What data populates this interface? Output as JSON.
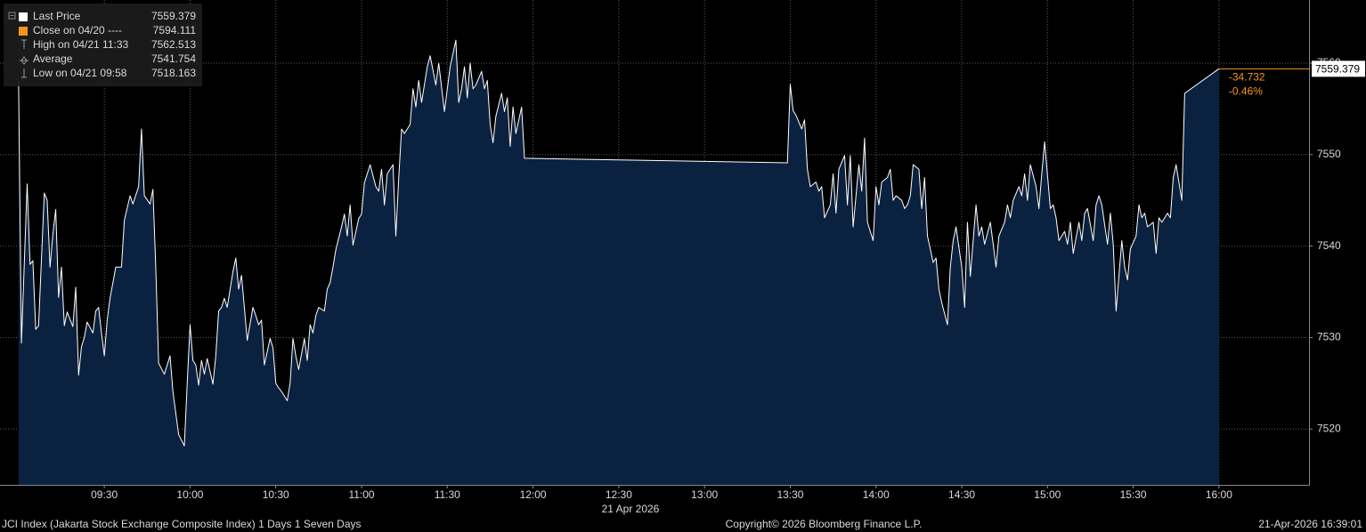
{
  "chart_data": {
    "type": "area",
    "date_label": "21 Apr 2026",
    "footer_left": "JCI Index (Jakarta Stock Exchange Composite Index) 1 Days 1 Seven Days",
    "footer_center": "Copyright© 2026 Bloomberg Finance L.P.",
    "footer_right": "21-Apr-2026 16:39:01",
    "xlim": [
      533.5,
      991.5
    ],
    "ylim": [
      7513.9,
      7566.9
    ],
    "xticks": [
      {
        "value": 570,
        "label": "09:30"
      },
      {
        "value": 600,
        "label": "10:00"
      },
      {
        "value": 630,
        "label": "10:30"
      },
      {
        "value": 660,
        "label": "11:00"
      },
      {
        "value": 690,
        "label": "11:30"
      },
      {
        "value": 720,
        "label": "12:00"
      },
      {
        "value": 750,
        "label": "12:30"
      },
      {
        "value": 780,
        "label": "13:00"
      },
      {
        "value": 810,
        "label": "13:30"
      },
      {
        "value": 840,
        "label": "14:00"
      },
      {
        "value": 870,
        "label": "14:30"
      },
      {
        "value": 900,
        "label": "15:00"
      },
      {
        "value": 930,
        "label": "15:30"
      },
      {
        "value": 960,
        "label": "16:00"
      }
    ],
    "yticks": [
      7520,
      7530,
      7540,
      7550,
      7560
    ],
    "grid": true,
    "x": [
      540,
      541,
      543,
      544,
      545,
      546,
      547,
      549,
      550,
      551,
      552,
      553,
      554,
      555,
      556,
      557,
      559,
      560,
      561,
      562,
      563,
      564,
      566,
      567,
      568,
      569,
      570,
      571,
      572,
      574,
      576,
      577,
      579,
      580,
      582,
      583,
      584,
      586,
      587,
      588,
      589,
      591,
      593,
      594,
      596,
      598,
      599,
      600,
      601,
      602,
      603,
      604,
      605,
      606,
      608,
      609,
      610,
      611,
      612,
      613,
      615,
      616,
      617,
      618,
      619,
      620,
      622,
      623,
      624,
      625,
      626,
      628,
      629,
      630,
      631,
      632,
      634,
      635,
      636,
      637,
      638,
      640,
      641,
      642,
      643,
      644,
      645,
      647,
      648,
      649,
      650,
      651,
      653,
      654,
      655,
      656,
      657,
      659,
      660,
      661,
      662,
      663,
      665,
      666,
      667,
      668,
      669,
      671,
      672,
      673,
      674,
      675,
      677,
      678,
      679,
      680,
      681,
      683,
      684,
      686,
      687,
      689,
      691,
      693,
      694,
      695,
      696,
      697,
      698,
      699,
      700,
      702,
      703,
      704,
      705,
      706,
      707,
      709,
      710,
      711,
      712,
      713,
      714,
      716,
      717,
      809,
      810,
      811,
      812,
      814,
      815,
      816,
      817,
      819,
      820,
      821,
      822,
      824,
      825,
      826,
      827,
      829,
      830,
      831,
      832,
      834,
      835,
      836,
      837,
      839,
      840,
      841,
      842,
      844,
      845,
      846,
      847,
      849,
      850,
      851,
      852,
      853,
      855,
      856,
      857,
      858,
      860,
      861,
      862,
      863,
      865,
      866,
      867,
      868,
      870,
      871,
      872,
      873,
      875,
      876,
      877,
      878,
      880,
      881,
      882,
      883,
      885,
      886,
      887,
      888,
      890,
      891,
      892,
      893,
      894,
      896,
      897,
      898,
      899,
      901,
      902,
      903,
      904,
      906,
      907,
      908,
      909,
      911,
      912,
      913,
      914,
      916,
      917,
      918,
      919,
      921,
      922,
      923,
      924,
      926,
      927,
      928,
      929,
      931,
      932,
      933,
      934,
      935,
      937,
      938,
      939,
      940,
      942,
      943,
      944,
      945,
      947,
      948,
      960
    ],
    "series": [
      {
        "name": "Last Price",
        "color": "#ffffff",
        "fill_color": "#0b2140",
        "values": [
          7558.0,
          7529.4,
          7546.8,
          7538.0,
          7538.4,
          7530.9,
          7531.3,
          7545.8,
          7545.0,
          7537.7,
          7541.3,
          7544.0,
          7534.4,
          7537.7,
          7531.3,
          7532.8,
          7531.2,
          7535.5,
          7525.9,
          7529.0,
          7530.0,
          7531.7,
          7530.5,
          7532.9,
          7533.3,
          7530.5,
          7528.0,
          7531.9,
          7534.3,
          7537.7,
          7537.7,
          7542.8,
          7545.5,
          7544.6,
          7546.5,
          7552.8,
          7545.5,
          7544.6,
          7546.2,
          7537.7,
          7527.2,
          7526.0,
          7528.0,
          7524.1,
          7519.4,
          7518.163,
          7525.0,
          7531.4,
          7527.5,
          7527.0,
          7524.8,
          7527.5,
          7526.0,
          7527.7,
          7524.9,
          7528.0,
          7532.9,
          7533.3,
          7534.3,
          7533.3,
          7537.2,
          7538.7,
          7535.3,
          7536.8,
          7533.3,
          7529.7,
          7533.3,
          7532.4,
          7531.4,
          7531.9,
          7527.0,
          7529.9,
          7528.9,
          7525.0,
          7524.5,
          7524.1,
          7523.1,
          7525.0,
          7529.9,
          7528.0,
          7526.5,
          7529.9,
          7527.5,
          7531.4,
          7530.5,
          7532.4,
          7533.3,
          7532.9,
          7535.3,
          7536.0,
          7537.7,
          7539.6,
          7542.1,
          7543.5,
          7541.1,
          7544.5,
          7540.1,
          7543.0,
          7543.5,
          7546.9,
          7547.9,
          7548.9,
          7546.5,
          7546.0,
          7548.4,
          7544.5,
          7547.9,
          7548.9,
          7541.1,
          7547.4,
          7552.8,
          7552.3,
          7553.3,
          7557.2,
          7555.2,
          7558.1,
          7555.7,
          7559.6,
          7560.8,
          7557.6,
          7560.0,
          7554.7,
          7559.6,
          7562.513,
          7555.7,
          7557.2,
          7559.6,
          7556.2,
          7560.0,
          7557.2,
          7557.6,
          7559.1,
          7557.2,
          7558.1,
          7553.3,
          7551.3,
          7554.2,
          7556.7,
          7554.7,
          7556.2,
          7550.9,
          7555.2,
          7552.3,
          7555.2,
          7549.6,
          7549.1,
          7557.7,
          7554.8,
          7554.3,
          7552.8,
          7553.8,
          7548.4,
          7546.5,
          7547.0,
          7546.0,
          7546.5,
          7543.1,
          7544.5,
          7547.9,
          7543.6,
          7548.4,
          7549.9,
          7544.5,
          7549.9,
          7542.1,
          7548.9,
          7546.0,
          7551.8,
          7542.6,
          7540.6,
          7546.5,
          7544.5,
          7547.0,
          7547.5,
          7548.4,
          7545.0,
          7545.5,
          7545.0,
          7544.1,
          7544.5,
          7545.5,
          7548.9,
          7548.4,
          7544.1,
          7547.5,
          7541.1,
          7538.2,
          7538.7,
          7535.3,
          7533.8,
          7531.4,
          7537.7,
          7540.6,
          7542.1,
          7537.7,
          7533.3,
          7542.6,
          7536.7,
          7544.5,
          7541.1,
          7542.1,
          7540.2,
          7542.6,
          7540.2,
          7537.7,
          7541.1,
          7542.6,
          7544.5,
          7543.1,
          7545.0,
          7546.5,
          7545.5,
          7547.9,
          7545.0,
          7548.9,
          7546.5,
          7544.1,
          7547.9,
          7551.4,
          7544.1,
          7544.5,
          7543.1,
          7540.6,
          7541.6,
          7540.2,
          7542.6,
          7539.2,
          7542.6,
          7540.6,
          7543.6,
          7544.1,
          7540.6,
          7544.5,
          7545.5,
          7544.5,
          7540.2,
          7543.6,
          7540.2,
          7532.9,
          7540.6,
          7537.7,
          7536.3,
          7539.7,
          7541.1,
          7544.5,
          7543.1,
          7543.6,
          7542.1,
          7542.6,
          7539.2,
          7543.1,
          7542.6,
          7543.6,
          7543.1,
          7547.5,
          7548.9,
          7545.0,
          7556.7,
          7559.379
        ]
      }
    ],
    "legend_items": [
      {
        "label": "Close on 04/20 ----",
        "value": 7594.111,
        "color": "#f7941d"
      },
      {
        "label": "High on 04/21 11:33",
        "value": 7562.513
      },
      {
        "label": "Average",
        "value": 7541.754
      },
      {
        "label": "Low on 04/21 09:58",
        "value": 7518.163
      }
    ],
    "change_annotations": [
      {
        "text": "-34.732",
        "color": "#f7941d"
      },
      {
        "text": "-0.46%",
        "color": "#f7941d"
      }
    ]
  }
}
